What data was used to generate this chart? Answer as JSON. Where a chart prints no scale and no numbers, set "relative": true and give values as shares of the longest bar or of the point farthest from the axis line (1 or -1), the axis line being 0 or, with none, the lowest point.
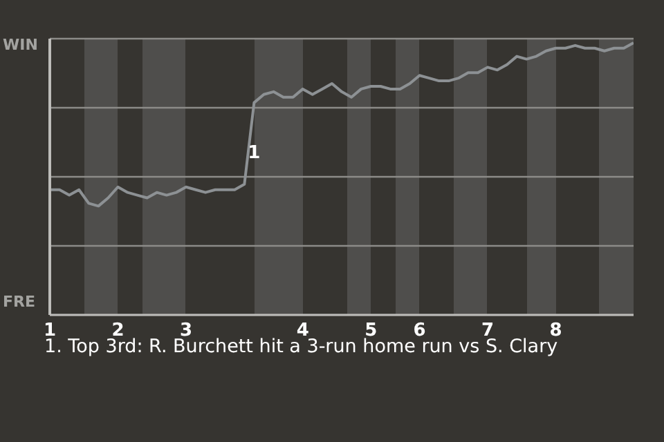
{
  "chart_data": {
    "type": "line",
    "relative": true,
    "annotations": [
      "WIN",
      "FRE",
      {
        "text": "1",
        "y": 0.6
      },
      "1. Top 3rd: R. Burchett hit a 3-run home run vs S. Clary"
    ],
    "categories": [
      "1",
      null,
      null,
      null,
      null,
      null,
      null,
      "2",
      null,
      null,
      null,
      null,
      null,
      null,
      "3",
      null,
      null,
      null,
      null,
      null,
      null,
      null,
      null,
      null,
      null,
      null,
      "4",
      null,
      null,
      null,
      null,
      null,
      null,
      "5",
      null,
      null,
      null,
      null,
      "6",
      null,
      null,
      null,
      null,
      null,
      null,
      "7",
      null,
      null,
      null,
      null,
      null,
      null,
      "8",
      null,
      null,
      null,
      null,
      null,
      null,
      null,
      null
    ],
    "series": [
      {
        "color": "#8d9194",
        "values": [
          0.46,
          0.46,
          0.44,
          0.46,
          0.41,
          0.4,
          0.43,
          0.47,
          0.45,
          0.44,
          0.43,
          0.45,
          0.44,
          0.45,
          0.47,
          0.46,
          0.45,
          0.46,
          0.46,
          0.46,
          0.48,
          0.78,
          0.81,
          0.82,
          0.8,
          0.8,
          0.83,
          0.81,
          0.83,
          0.85,
          0.82,
          0.8,
          0.83,
          0.84,
          0.84,
          0.83,
          0.83,
          0.85,
          0.88,
          0.87,
          0.86,
          0.86,
          0.87,
          0.89,
          0.89,
          0.91,
          0.9,
          0.92,
          0.95,
          0.94,
          0.95,
          0.97,
          0.98,
          0.98,
          0.99,
          0.98,
          0.98,
          0.97,
          0.98,
          0.98,
          1
        ]
      }
    ],
    "grid": "y",
    "legend": false,
    "marker": "none",
    "line_style": "solid"
  }
}
